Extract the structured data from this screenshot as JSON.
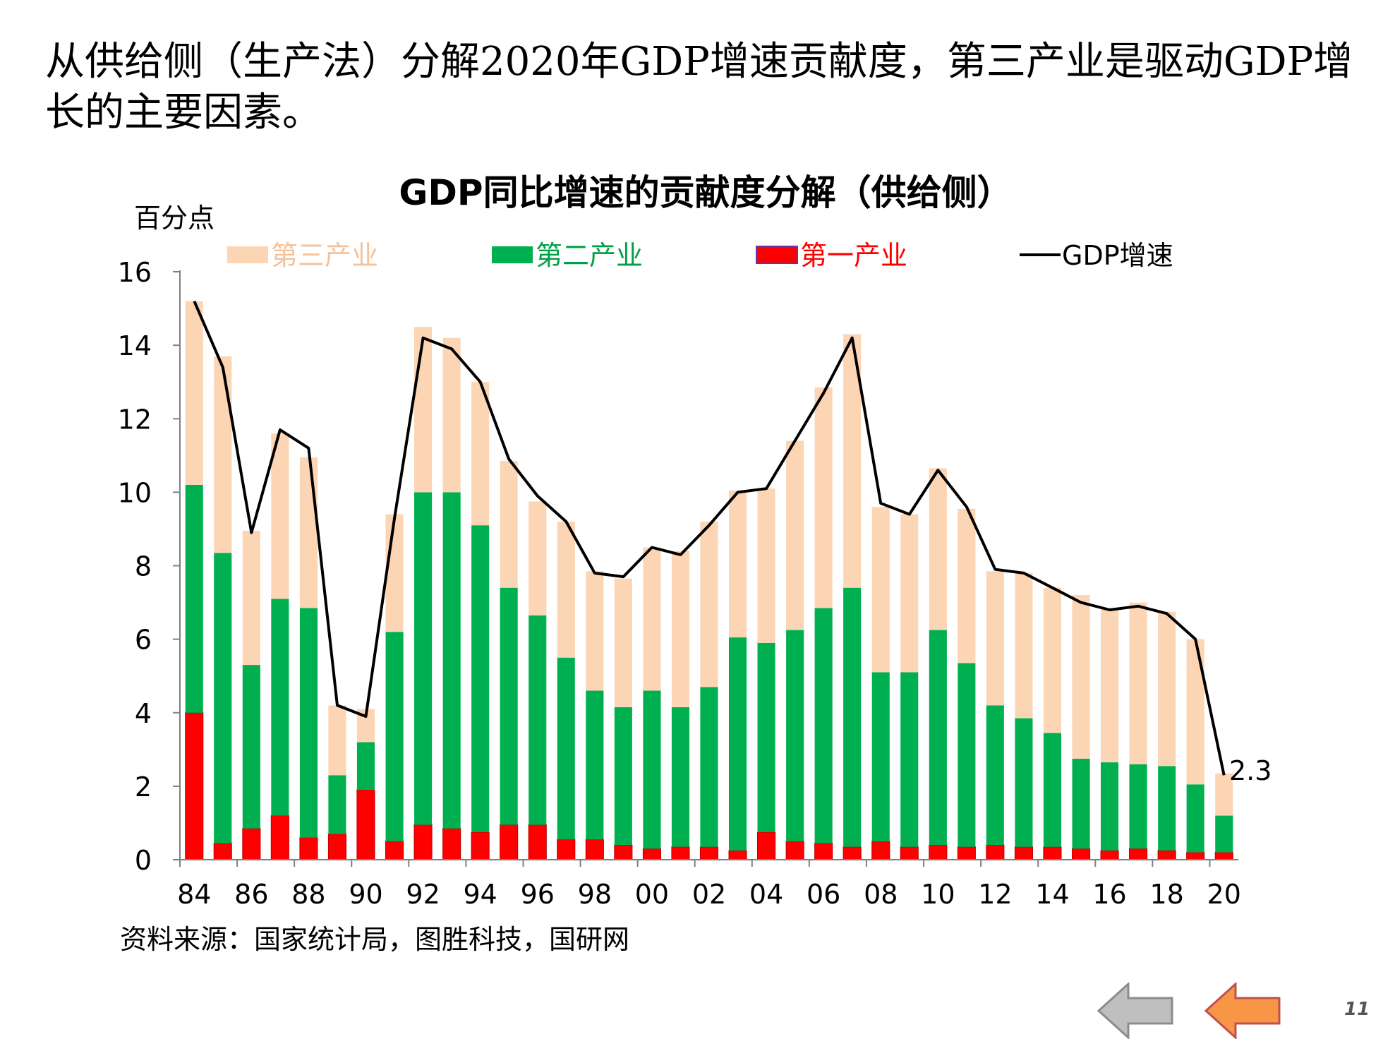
{
  "slide": {
    "headline": "从供给侧（生产法）分解2020年GDP增速贡献度，第三产业是驱动GDP增长的主要因素。",
    "source": "资料来源：国家统计局，图胜科技，国研网",
    "page_number": "11",
    "nav": {
      "back_icon": "left-arrow-icon-gray",
      "next_icon": "left-arrow-icon-orange"
    }
  },
  "chart_data": {
    "type": "bar",
    "stacked": true,
    "title": "GDP同比增速的贡献度分解（供给侧）",
    "ylabel": "百分点",
    "ylim": [
      0,
      16
    ],
    "yticks": [
      "0",
      "2",
      "4",
      "6",
      "8",
      "10",
      "12",
      "14",
      "16"
    ],
    "categories": [
      "84",
      "85",
      "86",
      "87",
      "88",
      "89",
      "90",
      "91",
      "92",
      "93",
      "94",
      "95",
      "96",
      "97",
      "98",
      "99",
      "00",
      "01",
      "02",
      "03",
      "04",
      "05",
      "06",
      "07",
      "08",
      "09",
      "10",
      "11",
      "12",
      "13",
      "14",
      "15",
      "16",
      "17",
      "18",
      "19",
      "20"
    ],
    "xtick_labels": [
      "84",
      "86",
      "88",
      "90",
      "92",
      "94",
      "96",
      "98",
      "00",
      "02",
      "04",
      "06",
      "08",
      "10",
      "12",
      "14",
      "16",
      "18",
      "20"
    ],
    "series": [
      {
        "name": "第一产业",
        "kind": "bar",
        "color": "#ff0000",
        "values": [
          4.0,
          0.45,
          0.85,
          1.2,
          0.6,
          0.7,
          1.9,
          0.5,
          0.95,
          0.85,
          0.75,
          0.95,
          0.95,
          0.55,
          0.55,
          0.4,
          0.3,
          0.35,
          0.35,
          0.25,
          0.75,
          0.5,
          0.45,
          0.35,
          0.5,
          0.35,
          0.4,
          0.35,
          0.4,
          0.35,
          0.35,
          0.3,
          0.25,
          0.3,
          0.25,
          0.2,
          0.2
        ]
      },
      {
        "name": "第二产业",
        "kind": "bar",
        "color": "#00b050",
        "values": [
          6.2,
          7.9,
          4.45,
          5.9,
          6.25,
          1.6,
          1.3,
          5.7,
          9.05,
          9.15,
          8.35,
          6.45,
          5.7,
          4.95,
          4.05,
          3.75,
          4.3,
          3.8,
          4.35,
          5.8,
          5.15,
          5.75,
          6.4,
          7.05,
          4.6,
          4.75,
          5.85,
          5.0,
          3.8,
          3.5,
          3.1,
          2.45,
          2.4,
          2.3,
          2.3,
          1.85,
          1.0
        ]
      },
      {
        "name": "第三产业",
        "kind": "bar",
        "color": "#fcd5b5",
        "values": [
          5.0,
          5.35,
          3.65,
          4.5,
          4.1,
          1.9,
          0.9,
          3.2,
          4.5,
          4.2,
          3.9,
          3.45,
          3.1,
          3.7,
          3.25,
          3.5,
          3.9,
          4.25,
          4.5,
          4.0,
          4.2,
          5.15,
          6.0,
          6.9,
          4.5,
          4.3,
          4.4,
          4.2,
          3.65,
          3.95,
          3.95,
          4.45,
          4.2,
          4.4,
          4.2,
          3.95,
          1.15
        ]
      },
      {
        "name": "GDP增速",
        "kind": "line",
        "color": "#000000",
        "values": [
          15.2,
          13.4,
          8.9,
          11.7,
          11.2,
          4.2,
          3.9,
          9.3,
          14.2,
          13.9,
          13.0,
          10.9,
          9.9,
          9.2,
          7.8,
          7.7,
          8.5,
          8.3,
          9.1,
          10.0,
          10.1,
          11.4,
          12.7,
          14.2,
          9.7,
          9.4,
          10.6,
          9.6,
          7.9,
          7.8,
          7.4,
          7.0,
          6.8,
          6.9,
          6.7,
          6.0,
          2.3
        ]
      }
    ],
    "legend_order": [
      "第三产业",
      "第二产业",
      "第一产业",
      "GDP增速"
    ],
    "legend_position": "top",
    "annotation": "2.3",
    "grid": false
  }
}
